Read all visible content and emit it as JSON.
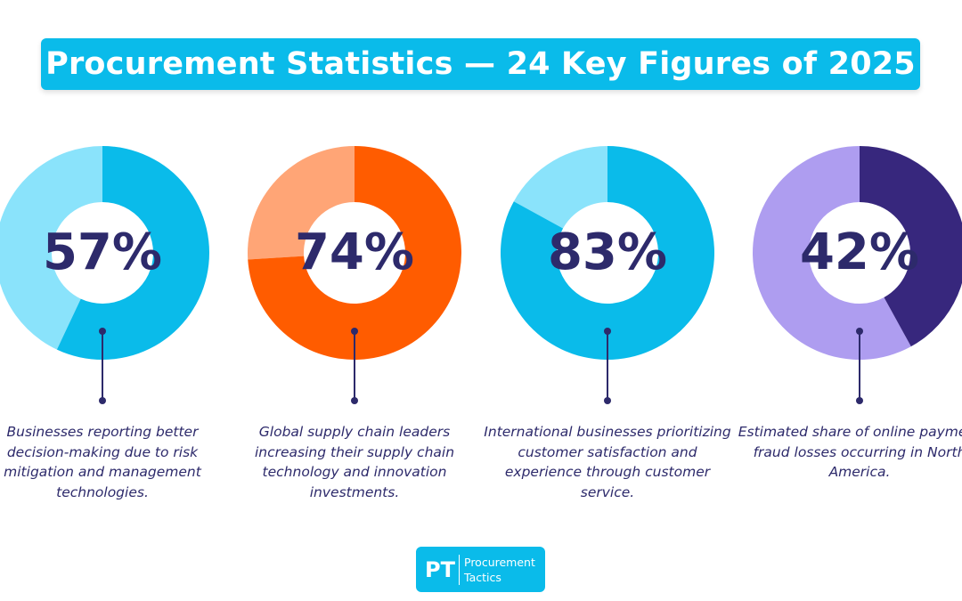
{
  "title": "Procurement Statistics — 24 Key Figures of 2025",
  "colors": {
    "banner": "#0abbea",
    "text_dark": "#2d2a6b",
    "connector": "#2d2a6b"
  },
  "chart_data": [
    {
      "type": "pie",
      "variant": "donut",
      "label": "57%",
      "value": 57,
      "unit": "%",
      "description": "Businesses reporting better decision-making due to risk mitigation and management technologies.",
      "colors": {
        "value": "#0abbea",
        "rest": "#8ae3fb",
        "label": "#2d2a6b"
      }
    },
    {
      "type": "pie",
      "variant": "donut",
      "label": "74%",
      "value": 74,
      "unit": "%",
      "description": "Global supply chain leaders increasing their supply chain technology and innovation investments.",
      "colors": {
        "value": "#ff5c00",
        "rest": "#ffa576",
        "label": "#2d2a6b"
      }
    },
    {
      "type": "pie",
      "variant": "donut",
      "label": "83%",
      "value": 83,
      "unit": "%",
      "description": "International businesses prioritizing customer satisfaction and experience through customer service.",
      "colors": {
        "value": "#0abbea",
        "rest": "#8ae3fb",
        "label": "#2d2a6b"
      }
    },
    {
      "type": "pie",
      "variant": "donut",
      "label": "42%",
      "value": 42,
      "unit": "%",
      "description": "Estimated share of online payment fraud losses occurring in North America.",
      "colors": {
        "value": "#37277d",
        "rest": "#ae9df0",
        "label": "#2d2a6b"
      }
    }
  ],
  "logo": {
    "mark": "PT",
    "line1": "Procurement",
    "line2": "Tactics"
  }
}
